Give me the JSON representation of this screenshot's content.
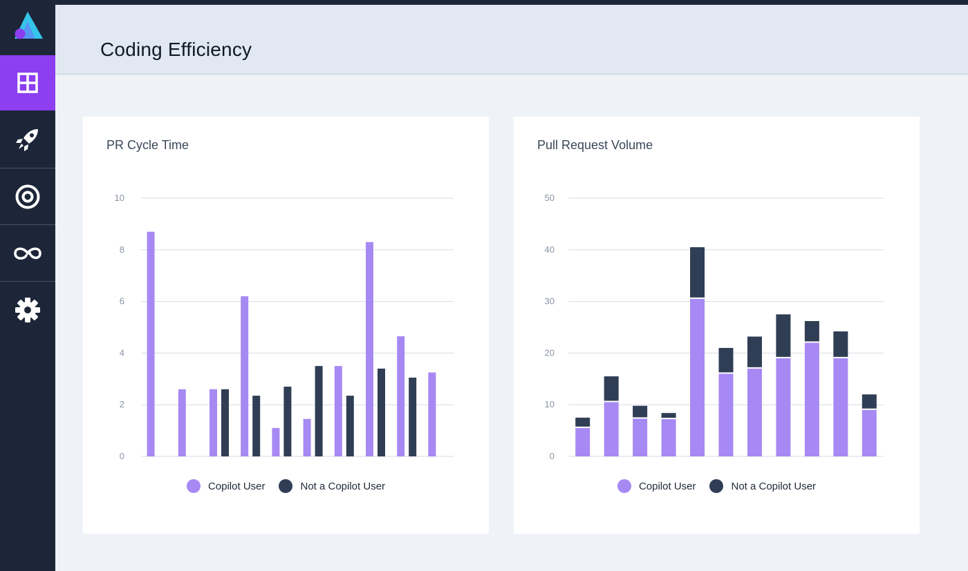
{
  "header": {
    "title": "Coding Efficiency"
  },
  "sidebar": {
    "items": [
      {
        "name": "dashboard",
        "active": true
      },
      {
        "name": "rocket",
        "active": false
      },
      {
        "name": "target",
        "active": false
      },
      {
        "name": "infinity",
        "active": false
      },
      {
        "name": "settings",
        "active": false
      }
    ]
  },
  "colors": {
    "copilot": "#a789f4",
    "not_copilot": "#303e55",
    "accent": "#8c3ef0",
    "sidebar": "#1d2639"
  },
  "legend": {
    "copilot": "Copilot User",
    "not_copilot": "Not a Copilot User"
  },
  "chart_data": [
    {
      "type": "bar",
      "title": "PR Cycle Time",
      "ylim": [
        0,
        10
      ],
      "yticks": [
        "0",
        "2",
        "4",
        "6",
        "8",
        "10"
      ],
      "stacked": false,
      "series": [
        {
          "name": "Copilot User",
          "values": [
            8.7,
            2.6,
            2.6,
            6.2,
            1.1,
            1.45,
            3.5,
            8.3,
            4.65,
            3.25
          ]
        },
        {
          "name": "Not a Copilot User",
          "values": [
            null,
            null,
            2.6,
            2.35,
            2.7,
            3.5,
            2.35,
            3.4,
            3.05,
            null
          ]
        }
      ]
    },
    {
      "type": "bar",
      "title": "Pull Request Volume",
      "ylim": [
        0,
        50
      ],
      "yticks": [
        "0",
        "10",
        "20",
        "30",
        "40",
        "50"
      ],
      "stacked": true,
      "series": [
        {
          "name": "Copilot User",
          "values": [
            5.5,
            10.5,
            7.3,
            7.2,
            30.5,
            16,
            17,
            19,
            22,
            19,
            9
          ]
        },
        {
          "name": "Not a Copilot User",
          "values": [
            2,
            5,
            2.5,
            1.2,
            10,
            5,
            6.2,
            8.5,
            4.2,
            5.2,
            3
          ]
        }
      ]
    }
  ]
}
